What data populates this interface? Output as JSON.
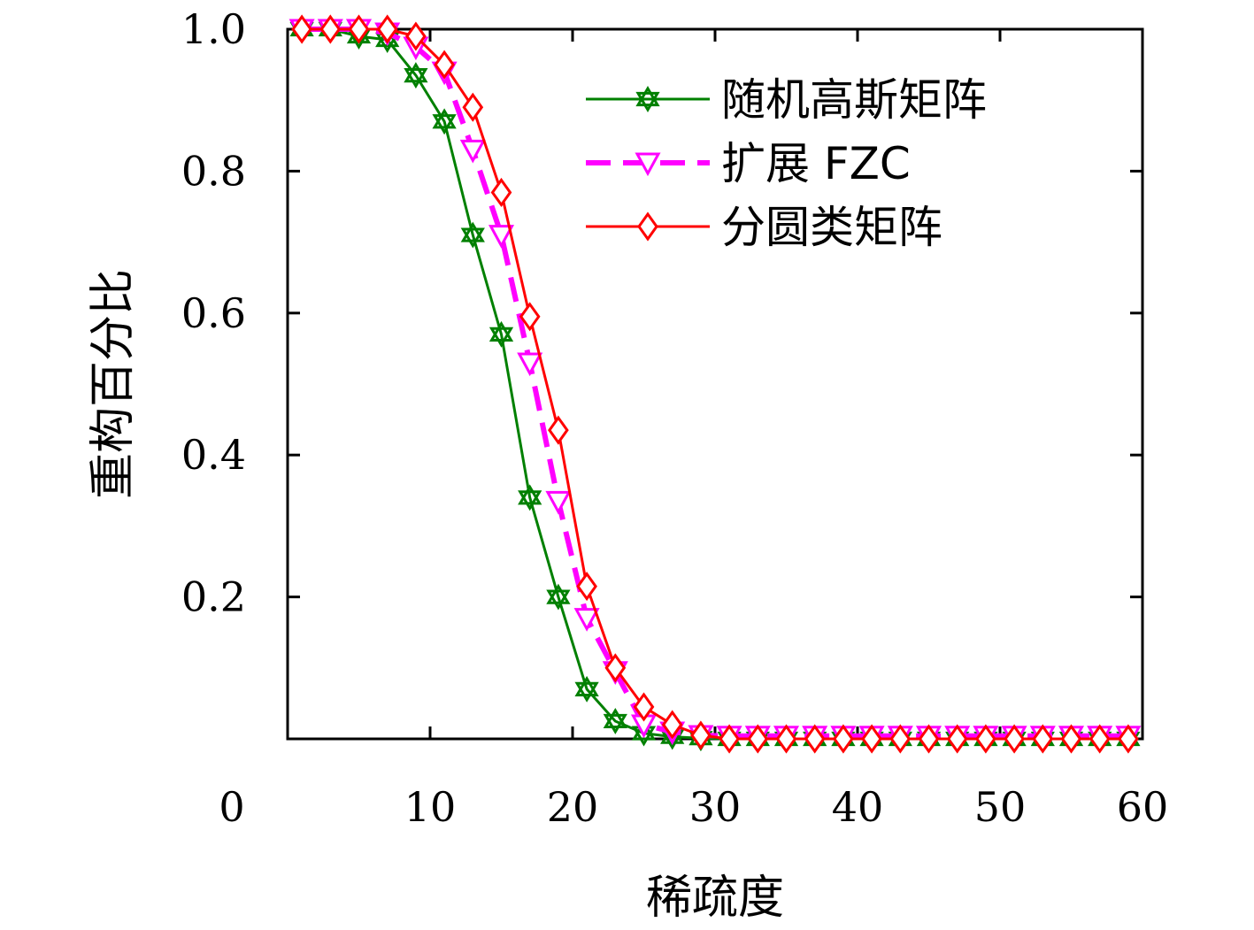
{
  "chart_data": {
    "type": "line",
    "title": "",
    "xlabel": "稀疏度",
    "ylabel": "重构百分比",
    "xlim": [
      0,
      60
    ],
    "ylim": [
      0,
      1.0
    ],
    "x_ticks": [
      0,
      10,
      20,
      30,
      40,
      50,
      60
    ],
    "x_tick_labels": [
      "0",
      "10",
      "20",
      "30",
      "40",
      "50",
      "60"
    ],
    "y_ticks": [
      0.2,
      0.4,
      0.6,
      0.8,
      1.0
    ],
    "y_tick_labels": [
      "0.2",
      "0.4",
      "0.6",
      "0.8",
      "1.0"
    ],
    "grid": false,
    "legend_position": "top-right",
    "x": [
      1,
      3,
      5,
      7,
      9,
      11,
      13,
      15,
      17,
      19,
      21,
      23,
      25,
      27,
      29,
      31,
      33,
      35,
      37,
      39,
      41,
      43,
      45,
      47,
      49,
      51,
      53,
      55,
      57,
      59
    ],
    "series": [
      {
        "name": "随机高斯矩阵",
        "color": "#008000",
        "marker": "star",
        "dash": "solid",
        "values": [
          1.0,
          1.0,
          0.99,
          0.985,
          0.935,
          0.87,
          0.71,
          0.57,
          0.34,
          0.2,
          0.07,
          0.025,
          0.008,
          0.003,
          0.001,
          0,
          0,
          0,
          0,
          0,
          0,
          0,
          0,
          0,
          0,
          0,
          0,
          0,
          0,
          0
        ]
      },
      {
        "name": "扩展 FZC",
        "color": "#ff00ff",
        "marker": "triangle-down",
        "dash": "dashed",
        "values": [
          1.0,
          1.0,
          1.0,
          0.995,
          0.975,
          0.94,
          0.83,
          0.71,
          0.53,
          0.335,
          0.17,
          0.095,
          0.02,
          0.01,
          0.005,
          0.004,
          0.004,
          0.004,
          0.004,
          0.004,
          0.004,
          0.004,
          0.004,
          0.004,
          0.004,
          0.004,
          0.004,
          0.004,
          0.004,
          0.004
        ]
      },
      {
        "name": "分圆类矩阵",
        "color": "#ff0000",
        "marker": "diamond",
        "dash": "solid",
        "values": [
          1.0,
          1.0,
          1.0,
          1.0,
          0.99,
          0.95,
          0.89,
          0.77,
          0.595,
          0.435,
          0.215,
          0.1,
          0.045,
          0.02,
          0.005,
          0,
          0,
          0,
          0,
          0,
          0,
          0,
          0,
          0,
          0,
          0,
          0,
          0,
          0,
          0
        ]
      }
    ]
  }
}
